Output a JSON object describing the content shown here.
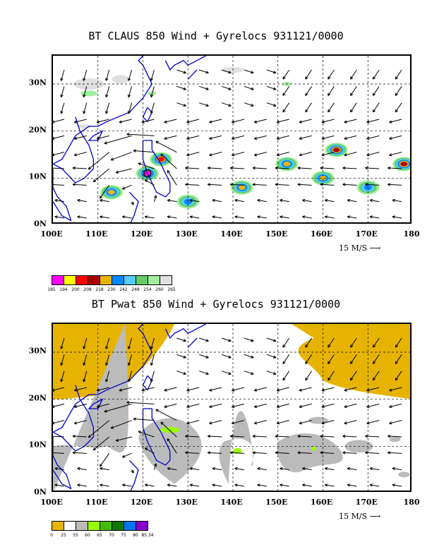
{
  "chart_data": [
    {
      "type": "heatmap",
      "title": "BT CLAUS 850 Wind + Gyrelocs 931121/0000",
      "x_ticks": [
        "100E",
        "110E",
        "120E",
        "130E",
        "140E",
        "150E",
        "160E",
        "170E",
        "180"
      ],
      "y_ticks": [
        "0N",
        "10N",
        "20N",
        "30N"
      ],
      "xlim": [
        100,
        180
      ],
      "ylim": [
        0,
        36
      ],
      "grid": true,
      "reference_vector": "15 M/S",
      "colorbar": {
        "labels": [
          "185",
          "194",
          "200",
          "208",
          "218",
          "230",
          "242",
          "248",
          "254",
          "260",
          "265"
        ],
        "colors": [
          "#ff00ff",
          "#ffff00",
          "#ff0000",
          "#aa0000",
          "#e6b400",
          "#0088ff",
          "#55ccff",
          "#66cc66",
          "#a0f0a0",
          "#e0e0e0"
        ]
      },
      "features": [
        {
          "name": "typhoon",
          "lon": 121,
          "lat": 11,
          "level": "185"
        },
        {
          "name": "cluster",
          "lon": 124,
          "lat": 14,
          "level": "200"
        },
        {
          "name": "cluster",
          "lon": 113,
          "lat": 7,
          "level": "218"
        },
        {
          "name": "cluster",
          "lon": 130,
          "lat": 5,
          "level": "230"
        },
        {
          "name": "cluster",
          "lon": 142,
          "lat": 8,
          "level": "218"
        },
        {
          "name": "cluster",
          "lon": 152,
          "lat": 13,
          "level": "218"
        },
        {
          "name": "cluster",
          "lon": 163,
          "lat": 16,
          "level": "208"
        },
        {
          "name": "cluster",
          "lon": 160,
          "lat": 10,
          "level": "218"
        },
        {
          "name": "cluster",
          "lon": 170,
          "lat": 8,
          "level": "230"
        },
        {
          "name": "cluster",
          "lon": 178,
          "lat": 13,
          "level": "208"
        }
      ]
    },
    {
      "type": "heatmap",
      "title": "BT Pwat 850 Wind + Gyrelocs 931121/0000",
      "x_ticks": [
        "100E",
        "110E",
        "120E",
        "130E",
        "140E",
        "150E",
        "160E",
        "170E",
        "180"
      ],
      "y_ticks": [
        "0N",
        "10N",
        "20N",
        "30N"
      ],
      "xlim": [
        100,
        180
      ],
      "ylim": [
        0,
        36
      ],
      "grid": true,
      "reference_vector": "15 M/S",
      "colorbar": {
        "labels": [
          "0",
          "25",
          "55",
          "60",
          "65",
          "70",
          "75",
          "80",
          "85.34"
        ],
        "colors": [
          "#e6b400",
          "#ffffff",
          "#bbbbbb",
          "#99ff00",
          "#44bb00",
          "#117700",
          "#0077ee",
          "#8800cc"
        ]
      },
      "features": [
        {
          "name": "dry region",
          "lon": 110,
          "lat": 30,
          "level": "0-25"
        },
        {
          "name": "dry region",
          "lon": 170,
          "lat": 30,
          "level": "0-25"
        },
        {
          "name": "moist band",
          "lon": 125,
          "lat": 12,
          "level": "55-60"
        },
        {
          "name": "moist patch",
          "lon": 141,
          "lat": 9,
          "level": "60-65"
        },
        {
          "name": "moist patch",
          "lon": 158,
          "lat": 10,
          "level": "55-60"
        }
      ]
    }
  ]
}
